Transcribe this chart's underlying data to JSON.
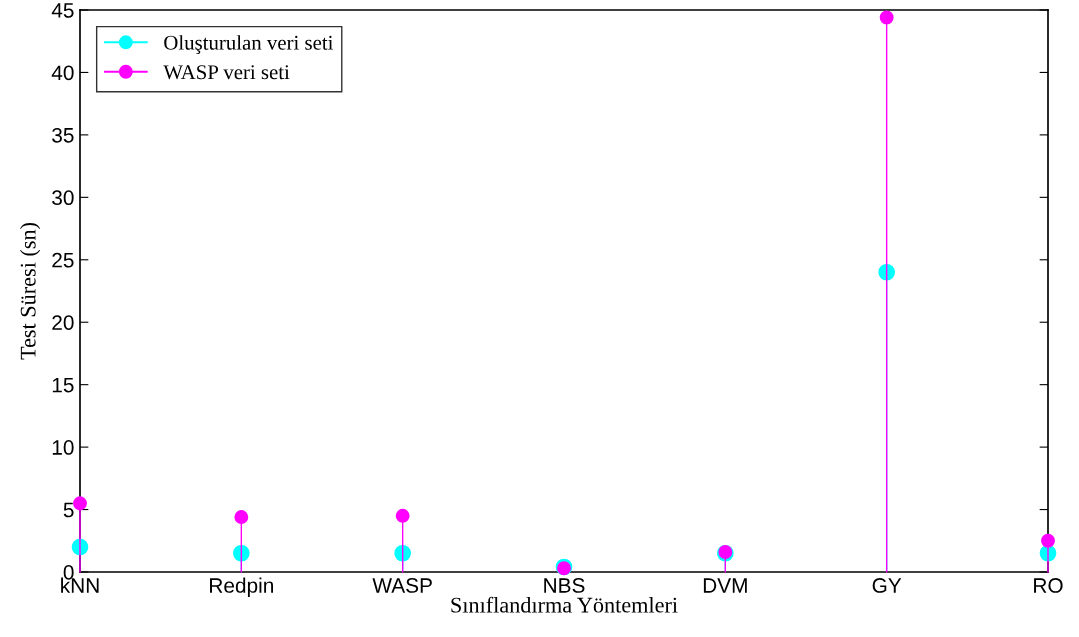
{
  "chart_data": {
    "type": "lollipop",
    "xlabel": "Sınıflandırma Yöntemleri",
    "ylabel": "Test Süresi (sn)",
    "categories": [
      "kNN",
      "Redpin",
      "WASP",
      "NBS",
      "DVM",
      "GY",
      "RO"
    ],
    "series": [
      {
        "name": "Oluşturulan veri seti",
        "color": "#00ffff",
        "values": [
          2.0,
          1.5,
          1.5,
          0.4,
          1.5,
          24.0,
          1.5
        ]
      },
      {
        "name": "WASP veri seti",
        "color": "#ff00ff",
        "values": [
          5.5,
          4.4,
          4.5,
          0.3,
          1.6,
          44.4,
          2.5
        ]
      }
    ],
    "ylim": [
      0,
      45
    ],
    "yticks": [
      0,
      5,
      10,
      15,
      20,
      25,
      30,
      35,
      40,
      45
    ],
    "grid": false,
    "legend": "top left",
    "marker": "circle",
    "line_style": "solid"
  }
}
